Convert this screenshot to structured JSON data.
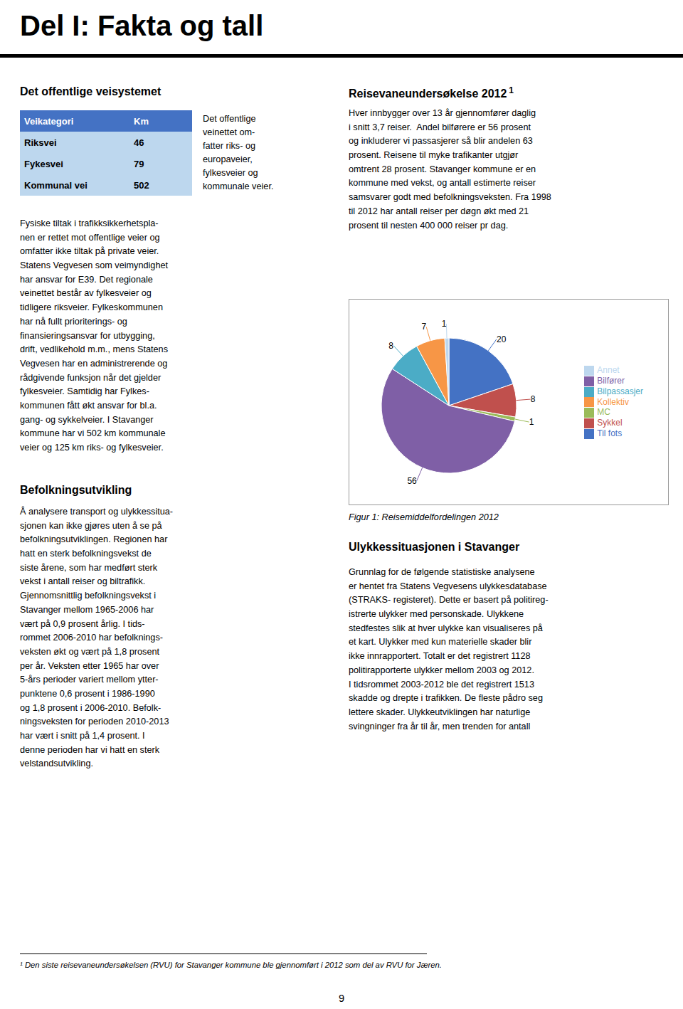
{
  "chart_data": {
    "type": "pie",
    "title": "Figur 1: Reisemiddelfordelingen 2012",
    "categories": [
      "Til fots",
      "Sykkel",
      "MC",
      "Bilfører",
      "Bilpassasjer",
      "Kollektiv",
      "Annet"
    ],
    "values": [
      20,
      8,
      1,
      56,
      8,
      7,
      1
    ],
    "colors": [
      "#4472C4",
      "#C0504D",
      "#9BBB59",
      "#7F5FA6",
      "#4BACC6",
      "#F79646",
      "#BDD7EE"
    ],
    "data_labels": true,
    "legend": "right",
    "annotations": [
      "Del I: Fakta og tall",
      "Det offentlige veisystemet",
      "Veikategori",
      "Km",
      "Riksvei",
      "46",
      "Fykesvei",
      "79",
      "Kommunal vei",
      "502",
      "Det offentlige\nveinettet om-\nfatter riks- og\neuropaveier,\nfylkesveier og\nkommunale veier.",
      "Fysiske tiltak i trafikksikkerhetspla-\nnen er rettet mot offentlige veier og\nomfatter ikke tiltak på private veier.\nStatens Vegvesen som veimyndighet\nhar ansvar for E39. Det regionale\nveinettet består av fylkesveier og\ntidligere riksveier. Fylkeskommunen\nhar nå fullt prioriterings- og\nfinansieringsansvar for utbygging,\ndrift, vedlikehold m.m., mens Statens\nVegvesen har en administrerende og\nrådgivende funksjon når det gjelder\nfylkesveier. Samtidig har Fylkes-\nkommunen fått økt ansvar for bl.a.\ngang- og sykkelveier. I Stavanger\nkommune har vi 502 km kommunale\nveier og 125 km riks- og fylkesveier.",
      "Befolkningsutvikling",
      "Å analysere transport og ulykkessitua-\nsjonen kan ikke gjøres uten å se på\nbefolkningsutviklingen. Regionen har\nhatt en sterk befolkningsvekst de\nsiste årene, som har medført sterk\nvekst i antall reiser og biltrafikk.\nGjennomsnittlig befolkningsvekst i\nStavanger mellom 1965-2006 har\nvært på 0,9 prosent årlig. I tids-\nrommet 2006-2010 har befolknings-\nveksten økt og vært på 1,8 prosent\nper år. Veksten etter 1965 har over\n5-års perioder variert mellom ytter-\npunktene 0,6 prosent i 1986-1990\nog 1,8 prosent i 2006-2010. Befolk-\nningsveksten for perioden 2010-2013\nhar vært i snitt på 1,4 prosent. I\ndenne perioden har vi hatt en sterk\nvelstandsutvikling.",
      "Reisevaneundersøkelse 2012",
      "1",
      "Hver innbygger over 13 år gjennomfører daglig\ni snitt 3,7 reiser.  Andel bilførere er 56 prosent\nog inkluderer vi passasjerer så blir andelen 63\nprosent. Reisene til myke trafikanter utgjør\nomtrent 28 prosent. Stavanger kommune er en\nkommune med vekst, og antall estimerte reiser\nsamsvarer godt med befolkningsveksten. Fra 1998\ntil 2012 har antall reiser per døgn økt med 21\nprosent til nesten 400 000 reiser pr dag.",
      "Ulykkessituasjonen i Stavanger",
      "Grunnlag for de følgende statistiske analysene\ner hentet fra Statens Vegvesens ulykkesdatabase\n(STRAKS- registeret). Dette er basert på politireg-\nistrerte ulykker med personskade. Ulykkene\nstedfestes slik at hver ulykke kan visualiseres på\net kart. Ulykker med kun materielle skader blir\nikke innrapportert. Totalt er det registrert 1128\npolitirapporterte ulykker mellom 2003 og 2012.\nI tidsrommet 2003-2012 ble det registrert 1513\nskadde og drepte i trafikken. De fleste pådro seg\nlettere skader. Ulykkeutviklingen har naturlige\nsvingninger fra år til år, men trenden for antall",
      "¹ Den siste reisevaneundersøkelsen (RVU) for Stavanger kommune ble gjennomført i 2012 som del av RVU for Jæren.",
      "9"
    ]
  }
}
